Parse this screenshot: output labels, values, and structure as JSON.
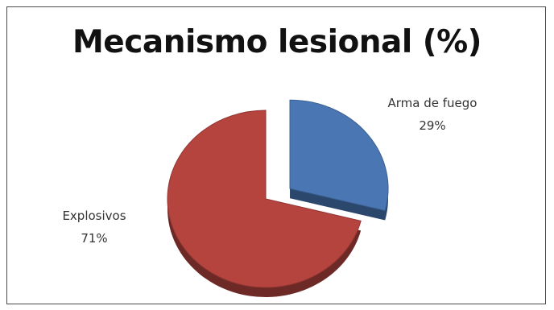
{
  "chart_data": {
    "type": "pie",
    "title": "Mecanismo lesional (%)",
    "slices": [
      {
        "label": "Arma de fuego",
        "value": 29,
        "value_label": "29%",
        "color": "#4a77b4",
        "exploded": true
      },
      {
        "label": "Explosivos",
        "value": 71,
        "value_label": "71%",
        "color": "#b5443f",
        "exploded": false
      }
    ],
    "style": "3d-exploded",
    "legend": "none"
  }
}
